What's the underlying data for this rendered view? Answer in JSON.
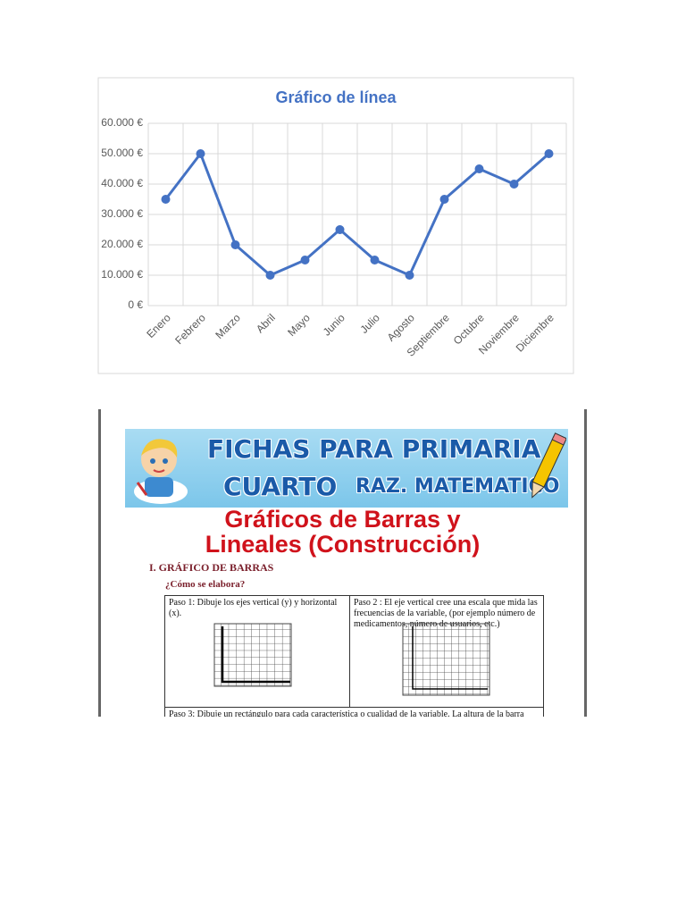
{
  "chart_data": {
    "type": "line",
    "title": "Gráfico de línea",
    "categories": [
      "Enero",
      "Febrero",
      "Marzo",
      "Abril",
      "Mayo",
      "Junio",
      "Julio",
      "Agosto",
      "Septiembre",
      "Octubre",
      "Noviembre",
      "Diciembre"
    ],
    "values": [
      35000,
      50000,
      20000,
      10000,
      15000,
      25000,
      15000,
      10000,
      35000,
      45000,
      40000,
      50000
    ],
    "color": "#4472c4",
    "ylim": [
      0,
      60000
    ],
    "yticks": [
      {
        "value": 0,
        "label": "0 €"
      },
      {
        "value": 10000,
        "label": "10.000 €"
      },
      {
        "value": 20000,
        "label": "20.000 €"
      },
      {
        "value": 30000,
        "label": "30.000 €"
      },
      {
        "value": 40000,
        "label": "40.000 €"
      },
      {
        "value": 50000,
        "label": "50.000 €"
      },
      {
        "value": 60000,
        "label": "60.000 €"
      }
    ],
    "grid": true
  },
  "worksheet": {
    "banner": {
      "line1": "FICHAS PARA PRIMARIA",
      "grade": "CUARTO",
      "subject": "RAZ. MATEMATICO"
    },
    "title": {
      "line1": "Gráficos de Barras y",
      "line2": "Lineales (Construcción)"
    },
    "section": "I.  GRÁFICO DE BARRAS",
    "question": "¿Cómo se elabora?",
    "steps": [
      "Paso 1: Dibuje los ejes vertical (y) y horizontal (x).",
      "Paso 2 : El eje vertical cree una escala que mida las frecuencias de la variable, (por ejemplo número de medicamentos, número de usuarios, etc.)",
      "Paso 3: Dibuje un rectángulo para cada característica o cualidad de la variable. La altura de la barra"
    ]
  }
}
